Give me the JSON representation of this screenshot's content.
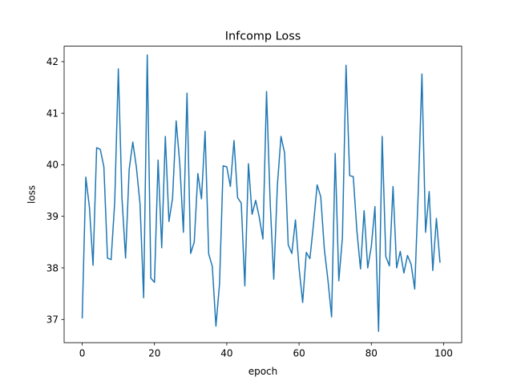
{
  "chart_data": {
    "type": "line",
    "title": "Infcomp Loss",
    "xlabel": "epoch",
    "ylabel": "loss",
    "xlim": [
      -5,
      105
    ],
    "ylim": [
      36.55,
      42.3
    ],
    "xticks": [
      0,
      20,
      40,
      60,
      80,
      100
    ],
    "yticks": [
      37,
      38,
      39,
      40,
      41,
      42
    ],
    "grid": false,
    "line_color": "#1f77b4",
    "series": [
      {
        "x": [
          0,
          1,
          2,
          3,
          4,
          5,
          6,
          7,
          8,
          9,
          10,
          11,
          12,
          13,
          14,
          15,
          16,
          17,
          18,
          19,
          20,
          21,
          22,
          23,
          24,
          25,
          26,
          27,
          28,
          29,
          30,
          31,
          32,
          33,
          34,
          35,
          36,
          37,
          38,
          39,
          40,
          41,
          42,
          43,
          44,
          45,
          46,
          47,
          48,
          49,
          50,
          51,
          52,
          53,
          54,
          55,
          56,
          57,
          58,
          59,
          60,
          61,
          62,
          63,
          64,
          65,
          66,
          67,
          68,
          69,
          70,
          71,
          72,
          73,
          74,
          75,
          76,
          77,
          78,
          79,
          80,
          81,
          82,
          83,
          84,
          85,
          86,
          87,
          88,
          89,
          90,
          91,
          92,
          93,
          94,
          95,
          96,
          97,
          98,
          99
        ],
        "y": [
          37.02,
          39.76,
          39.18,
          38.05,
          40.33,
          40.3,
          39.96,
          38.19,
          38.16,
          39.28,
          41.86,
          39.36,
          38.19,
          39.91,
          40.44,
          39.95,
          39.24,
          37.42,
          42.13,
          37.8,
          37.72,
          40.09,
          38.39,
          40.55,
          38.9,
          39.35,
          40.85,
          40.02,
          38.69,
          41.39,
          38.28,
          38.5,
          39.83,
          39.34,
          40.65,
          38.27,
          38.03,
          36.87,
          37.69,
          39.98,
          39.96,
          39.58,
          40.47,
          39.36,
          39.26,
          37.65,
          40.02,
          39.04,
          39.31,
          38.98,
          38.56,
          41.42,
          39.29,
          37.78,
          39.6,
          40.55,
          40.23,
          38.45,
          38.28,
          38.93,
          38.0,
          37.33,
          38.3,
          38.18,
          38.85,
          39.61,
          39.38,
          38.36,
          37.76,
          37.05,
          40.22,
          37.75,
          38.59,
          41.93,
          39.79,
          39.77,
          38.72,
          37.98,
          39.11,
          38.0,
          38.42,
          39.19,
          36.77,
          40.55,
          38.22,
          38.04,
          39.58,
          38.0,
          38.32,
          37.9,
          38.24,
          38.07,
          37.59,
          39.51,
          41.76,
          38.69,
          39.48,
          37.95,
          38.96,
          38.1
        ]
      }
    ]
  }
}
